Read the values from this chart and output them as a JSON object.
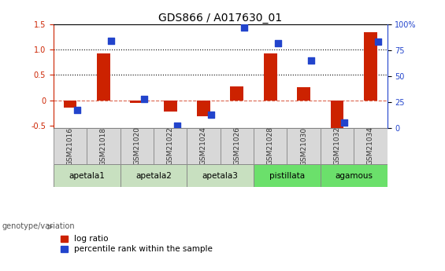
{
  "title": "GDS866 / A017630_01",
  "samples": [
    "GSM21016",
    "GSM21018",
    "GSM21020",
    "GSM21022",
    "GSM21024",
    "GSM21026",
    "GSM21028",
    "GSM21030",
    "GSM21032",
    "GSM21034"
  ],
  "log_ratio": [
    -0.15,
    0.93,
    -0.05,
    -0.22,
    -0.32,
    0.28,
    0.93,
    0.26,
    -0.55,
    1.35
  ],
  "percentile": [
    17,
    84,
    28,
    2,
    13,
    97,
    82,
    65,
    5,
    83
  ],
  "bar_color": "#cc2200",
  "dot_color": "#2244cc",
  "ylim_left": [
    -0.55,
    1.5
  ],
  "ylim_right": [
    0,
    100
  ],
  "dotted_lines": [
    0.5,
    1.0
  ],
  "groups": [
    {
      "label": "apetala1",
      "start": 0,
      "end": 2,
      "color": "#c8e0c0"
    },
    {
      "label": "apetala2",
      "start": 2,
      "end": 4,
      "color": "#c8e0c0"
    },
    {
      "label": "apetala3",
      "start": 4,
      "end": 6,
      "color": "#c8e0c0"
    },
    {
      "label": "pistillata",
      "start": 6,
      "end": 8,
      "color": "#6be06b"
    },
    {
      "label": "agamous",
      "start": 8,
      "end": 10,
      "color": "#6be06b"
    }
  ],
  "legend_bar_label": "log ratio",
  "legend_dot_label": "percentile rank within the sample",
  "genotype_label": "genotype/variation",
  "title_fontsize": 10,
  "tick_fontsize": 7,
  "label_fontsize": 7.5
}
